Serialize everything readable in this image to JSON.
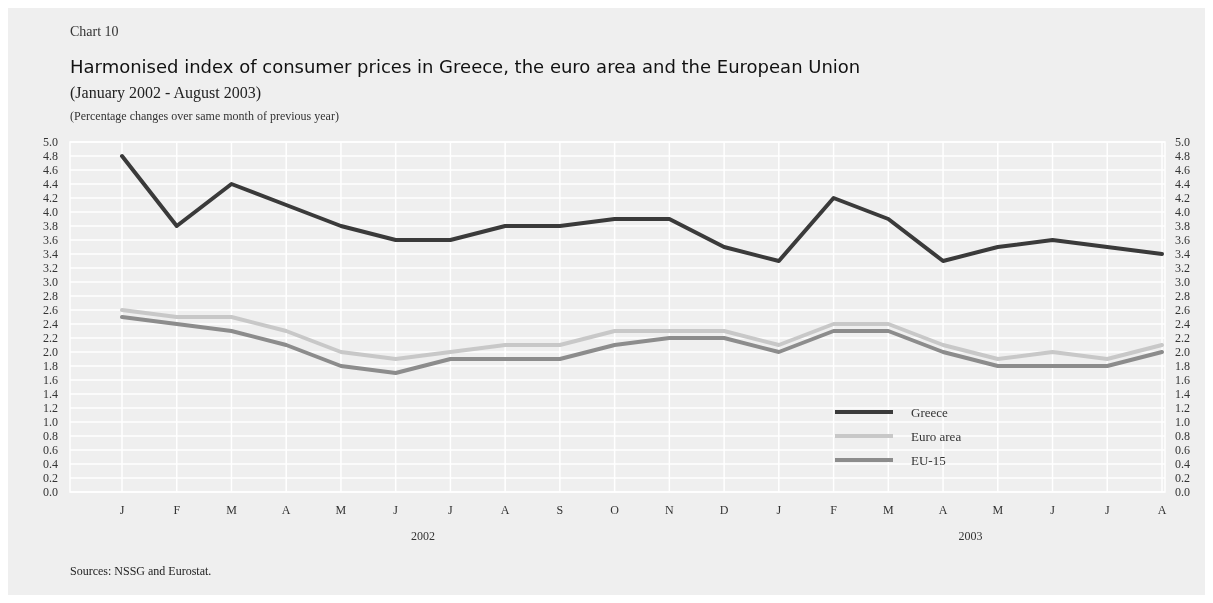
{
  "chart_data": {
    "type": "line",
    "title": "Harmonised index of consumer prices in Greece, the euro area and the European Union",
    "subtitle": "(January 2002 - August 2003)",
    "annotations": [
      "Chart 10",
      "(Percentage changes over same month of previous year)",
      "2002",
      "2003",
      "Sources: NSSG and Eurostat."
    ],
    "categories": [
      "J",
      "F",
      "M",
      "A",
      "M",
      "J",
      "J",
      "A",
      "S",
      "O",
      "N",
      "D",
      "J",
      "F",
      "M",
      "A",
      "M",
      "J",
      "J",
      "A"
    ],
    "series": [
      {
        "name": "Greece",
        "color": "#3a3a3a",
        "values": [
          4.8,
          3.8,
          4.4,
          4.1,
          3.8,
          3.6,
          3.6,
          3.8,
          3.8,
          3.9,
          3.9,
          3.5,
          3.3,
          4.2,
          3.9,
          3.3,
          3.5,
          3.6,
          3.5,
          3.4
        ]
      },
      {
        "name": "Euro area",
        "color": "#c8c8c8",
        "values": [
          2.6,
          2.5,
          2.5,
          2.3,
          2.0,
          1.9,
          2.0,
          2.1,
          2.1,
          2.3,
          2.3,
          2.3,
          2.1,
          2.4,
          2.4,
          2.1,
          1.9,
          2.0,
          1.9,
          2.1
        ]
      },
      {
        "name": "EU-15",
        "color": "#8c8c8c",
        "values": [
          2.5,
          2.4,
          2.3,
          2.1,
          1.8,
          1.7,
          1.9,
          1.9,
          1.9,
          2.1,
          2.2,
          2.2,
          2.0,
          2.3,
          2.3,
          2.0,
          1.8,
          1.8,
          1.8,
          2.0
        ]
      }
    ],
    "ylim": [
      0,
      5
    ],
    "yticks": [
      {
        "value": 0,
        "label": "0.0"
      },
      0.2,
      0.4,
      0.6,
      0.8,
      {
        "value": 1,
        "label": "1.0"
      },
      1.2,
      1.4,
      1.6,
      1.8,
      {
        "value": 2,
        "label": "2.0"
      },
      2.2,
      2.4,
      2.6,
      2.8,
      {
        "value": 3,
        "label": "3.0"
      },
      3.2,
      3.4,
      3.6,
      3.8,
      {
        "value": 4,
        "label": "4.0"
      },
      4.2,
      4.4,
      4.6,
      4.8,
      {
        "value": 5,
        "label": "5.0"
      }
    ],
    "y2lim": [
      0,
      5
    ],
    "y2ticks": [
      {
        "value": 0,
        "label": "0.0"
      },
      0.2,
      0.4,
      0.6,
      0.8,
      {
        "value": 1,
        "label": "1.0"
      },
      1.2,
      1.4,
      1.6,
      1.8,
      {
        "value": 2,
        "label": "2.0"
      },
      2.2,
      2.4,
      2.6,
      2.8,
      {
        "value": 3,
        "label": "3.0"
      },
      3.2,
      3.4,
      3.6,
      3.8,
      {
        "value": 4,
        "label": "4.0"
      },
      4.2,
      4.4,
      4.6,
      4.8,
      {
        "value": 5,
        "label": "5.0"
      }
    ],
    "grid": true,
    "legend": "bottom right",
    "line_style": "solid",
    "marker": "none"
  }
}
